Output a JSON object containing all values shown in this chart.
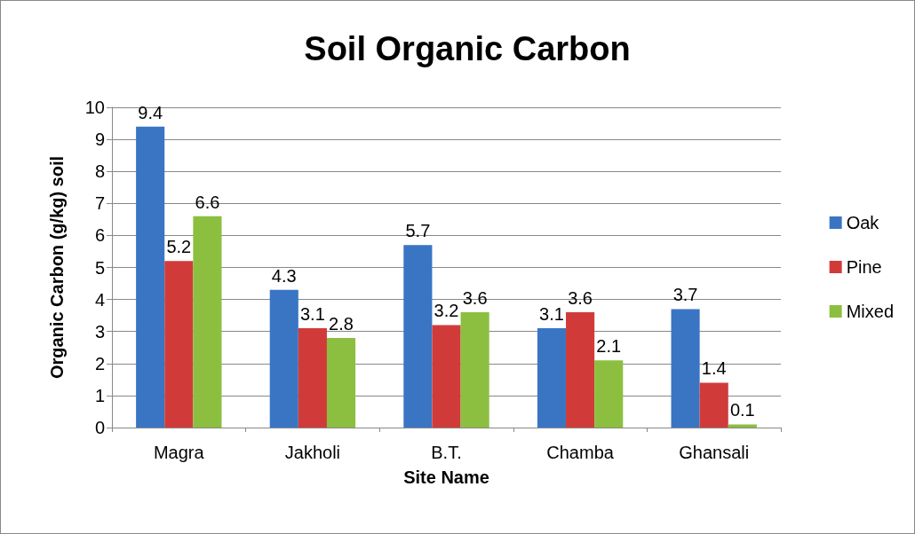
{
  "chart_data": {
    "type": "bar",
    "title": "Soil Organic Carbon",
    "xlabel": "Site Name",
    "ylabel": "Organic Carbon (g/kg) soil",
    "categories": [
      "Magra",
      "Jakholi",
      "B.T.",
      "Chamba",
      "Ghansali"
    ],
    "series": [
      {
        "name": "Oak",
        "color": "#3a75c4",
        "values": [
          9.4,
          4.3,
          5.7,
          3.1,
          3.7
        ]
      },
      {
        "name": "Pine",
        "color": "#d03b3a",
        "values": [
          5.2,
          3.1,
          3.2,
          3.6,
          1.4
        ]
      },
      {
        "name": "Mixed",
        "color": "#8cbf3f",
        "values": [
          6.6,
          2.8,
          3.6,
          2.1,
          0.1
        ]
      }
    ],
    "ylim": [
      0,
      10
    ],
    "yticks": [
      0,
      1,
      2,
      3,
      4,
      5,
      6,
      7,
      8,
      9,
      10
    ],
    "grid": "y",
    "legend": "right",
    "data_labels": true
  }
}
